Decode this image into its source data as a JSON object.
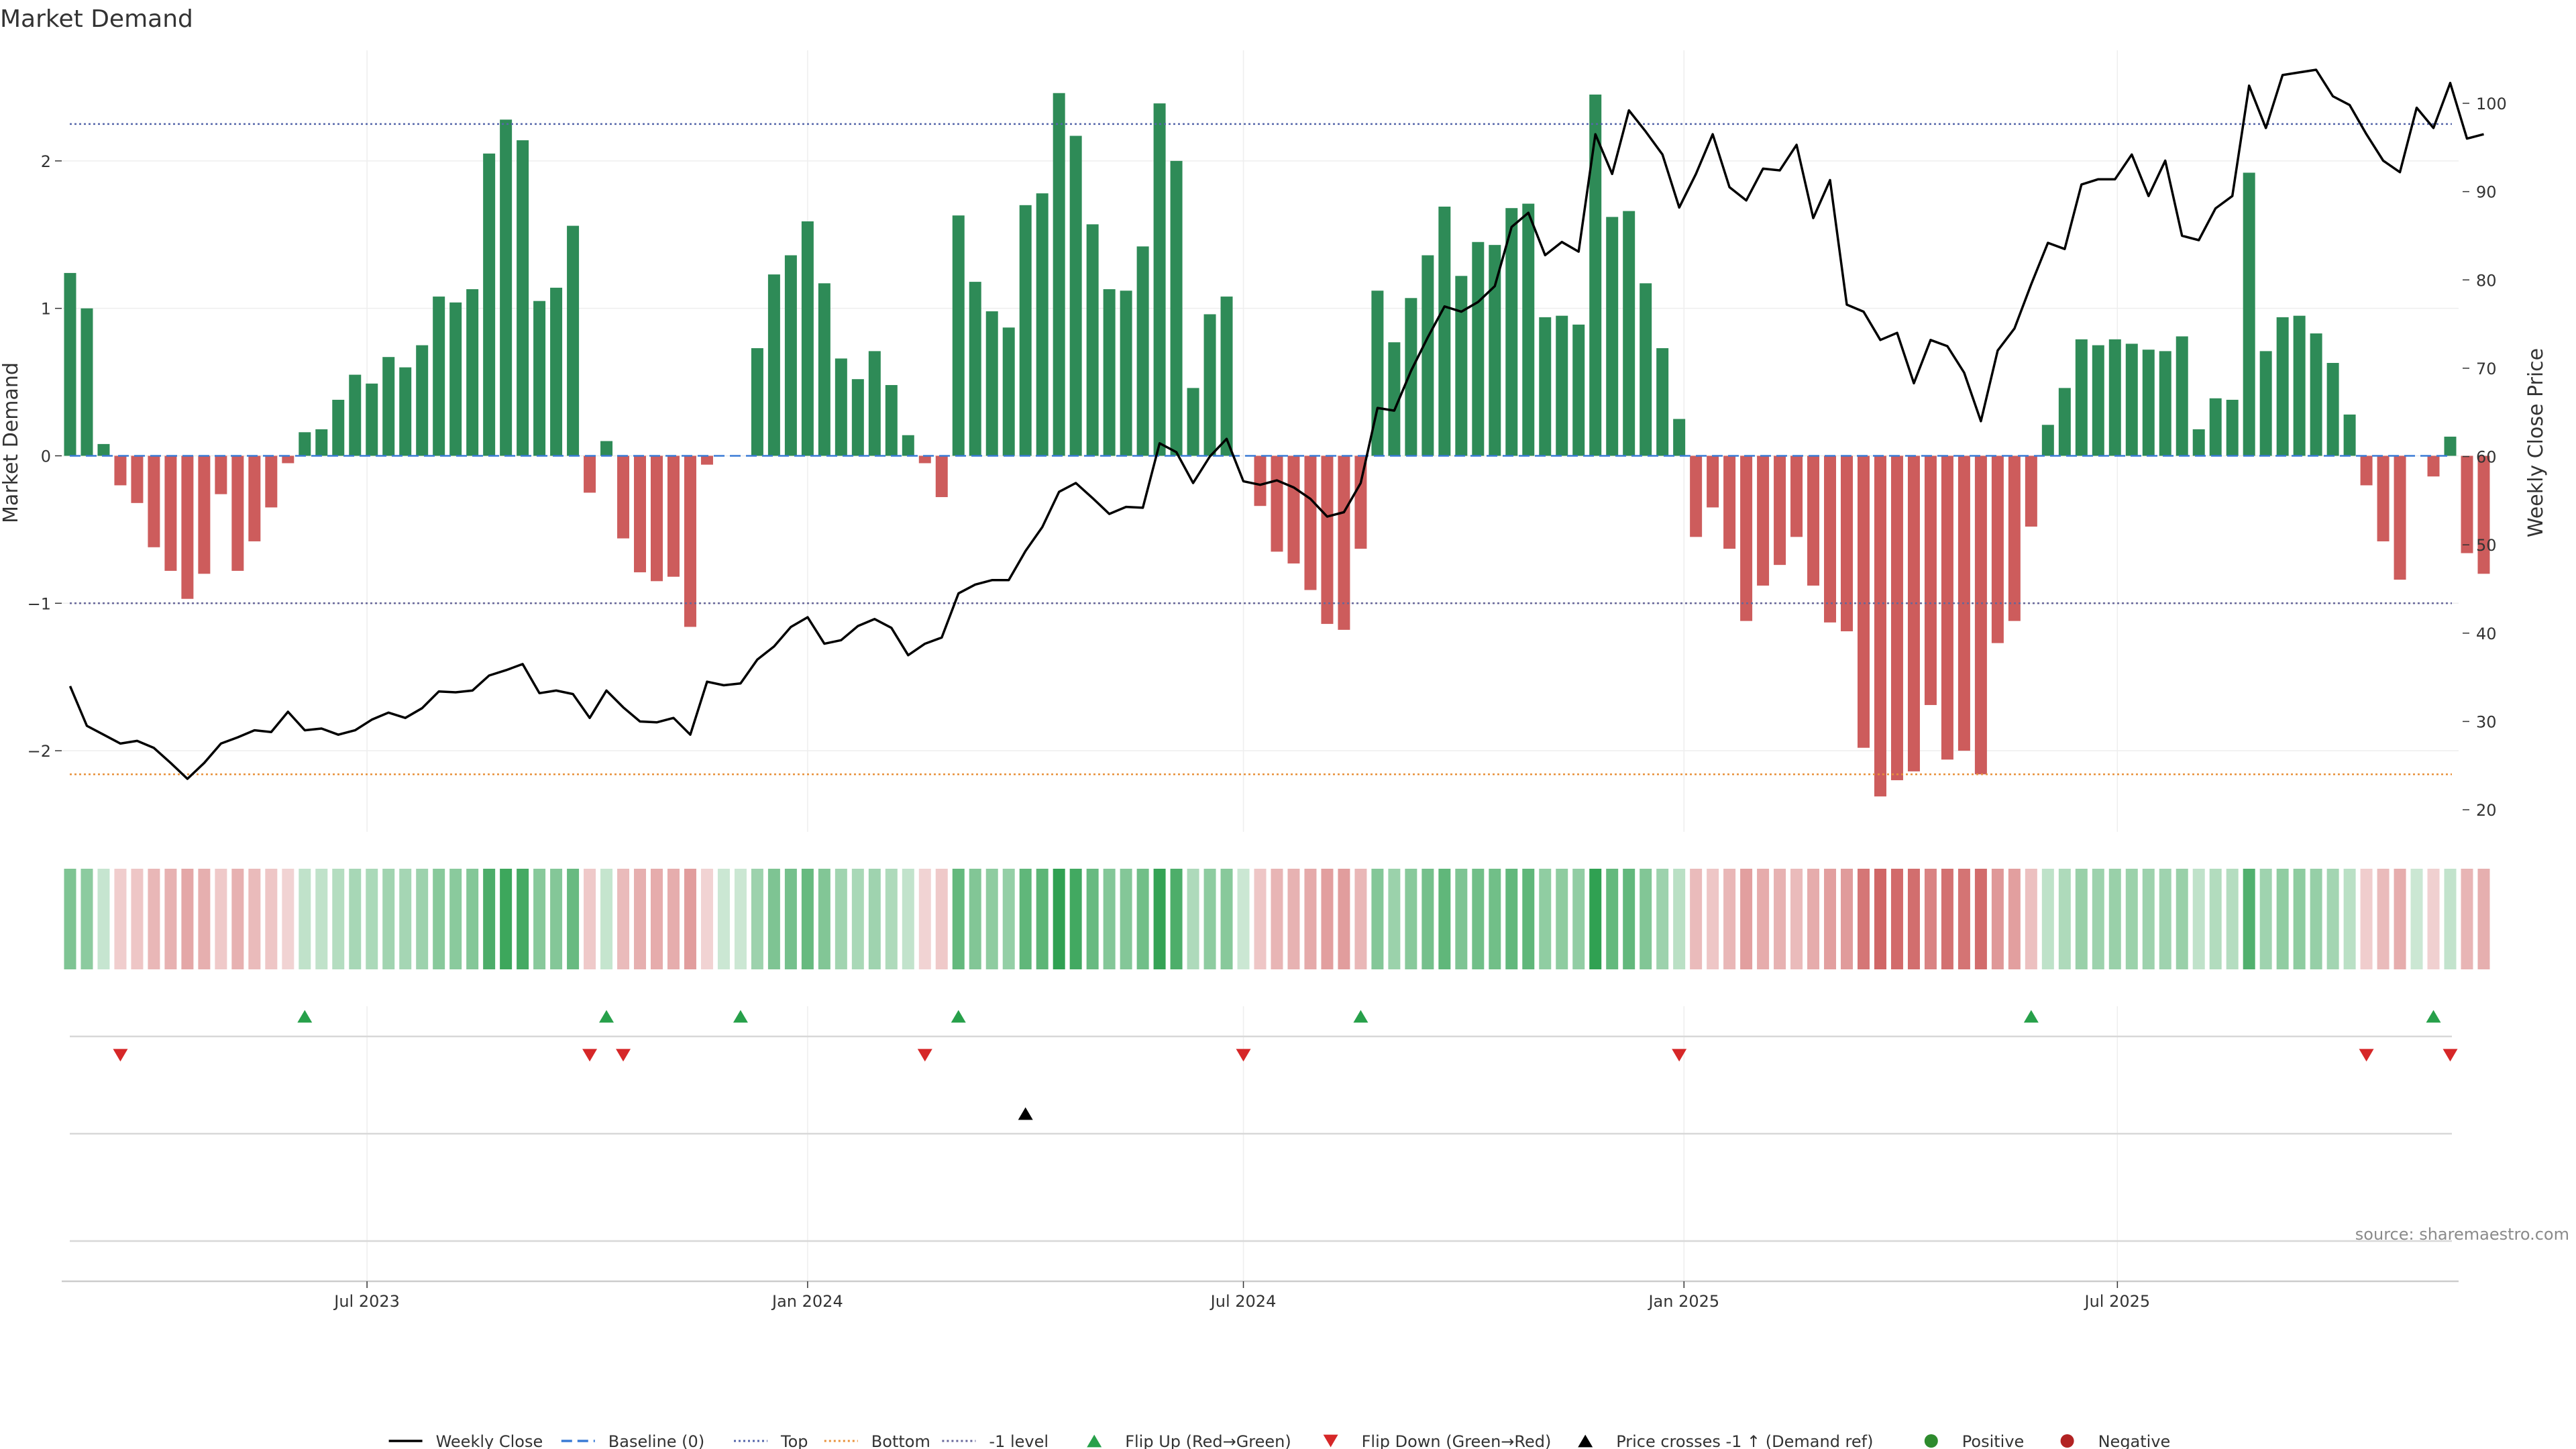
{
  "chart_data": {
    "type": "bar",
    "title": "Market Demand",
    "ylabel": "Market Demand",
    "y2label": "Weekly Close Price",
    "ylim": [
      -2.55,
      2.75
    ],
    "y2lim": [
      17.5,
      106
    ],
    "yticks": [
      -2,
      -1,
      0,
      1,
      2
    ],
    "y2ticks": [
      20,
      30,
      40,
      50,
      60,
      70,
      80,
      90,
      100
    ],
    "x_range": [
      "2023-02-27",
      "2025-11-17"
    ],
    "xticks": [
      {
        "date": "2023-07-01",
        "label": "Jul 2023"
      },
      {
        "date": "2024-01-01",
        "label": "Jan 2024"
      },
      {
        "date": "2024-07-01",
        "label": "Jul 2024"
      },
      {
        "date": "2025-01-01",
        "label": "Jan 2025"
      },
      {
        "date": "2025-07-01",
        "label": "Jul 2025"
      }
    ],
    "levels": {
      "top": 2.25,
      "bottom": -2.16,
      "minus_one": -1.0,
      "baseline": 0
    },
    "series": [
      {
        "name": "Market Demand",
        "start_date": "2023-02-27",
        "interval_days": 7,
        "values": [
          1.24,
          1.0,
          0.08,
          -0.2,
          -0.32,
          -0.62,
          -0.78,
          -0.97,
          -0.8,
          -0.26,
          -0.78,
          -0.58,
          -0.35,
          -0.05,
          0.16,
          0.18,
          0.38,
          0.55,
          0.49,
          0.67,
          0.6,
          0.75,
          1.08,
          1.04,
          1.13,
          2.05,
          2.28,
          2.14,
          1.05,
          1.14,
          1.56,
          -0.25,
          0.1,
          -0.56,
          -0.79,
          -0.85,
          -0.82,
          -1.16,
          -0.06,
          0.0,
          0.0,
          0.73,
          1.23,
          1.36,
          1.59,
          1.17,
          0.66,
          0.52,
          0.71,
          0.48,
          0.14,
          -0.05,
          -0.28,
          1.63,
          1.18,
          0.98,
          0.87,
          1.7,
          1.78,
          2.46,
          2.17,
          1.57,
          1.13,
          1.12,
          1.42,
          2.39,
          2.0,
          0.46,
          0.96,
          1.08,
          0.0,
          -0.34,
          -0.65,
          -0.73,
          -0.91,
          -1.14,
          -1.18,
          -0.63,
          1.12,
          0.77,
          1.07,
          1.36,
          1.69,
          1.22,
          1.45,
          1.43,
          1.68,
          1.71,
          0.94,
          0.95,
          0.89,
          2.45,
          1.62,
          1.66,
          1.17,
          0.73,
          0.25,
          -0.55,
          -0.35,
          -0.63,
          -1.12,
          -0.88,
          -0.74,
          -0.55,
          -0.88,
          -1.13,
          -1.19,
          -1.98,
          -2.31,
          -2.2,
          -2.14,
          -1.69,
          -2.06,
          -2.0,
          -2.16,
          -1.27,
          -1.12,
          -0.48,
          0.21,
          0.46,
          0.79,
          0.75,
          0.79,
          0.76,
          0.72,
          0.71,
          0.81,
          0.18,
          0.39,
          0.38,
          1.92,
          0.71,
          0.94,
          0.95,
          0.83,
          0.63,
          0.28,
          -0.2,
          -0.58,
          -0.84,
          0.0,
          -0.14,
          0.13,
          -0.66,
          -0.8
        ]
      },
      {
        "name": "Weekly Close",
        "start_date": "2023-02-27",
        "interval_days": 7,
        "values": [
          34,
          29.5,
          28.5,
          27.5,
          27.8,
          27,
          25.3,
          23.5,
          25.3,
          27.5,
          28.2,
          29,
          28.8,
          31.1,
          29,
          29.2,
          28.5,
          29,
          30.2,
          31,
          30.4,
          31.5,
          33.4,
          33.3,
          33.5,
          35.2,
          35.8,
          36.5,
          33.2,
          33.5,
          33.1,
          30.4,
          33.5,
          31.6,
          30,
          29.9,
          30.4,
          28.5,
          34.5,
          34.1,
          34.3,
          37,
          38.5,
          40.7,
          41.8,
          38.8,
          39.2,
          40.8,
          41.6,
          40.6,
          37.5,
          38.8,
          39.5,
          44.5,
          45.5,
          46,
          46,
          49.3,
          52,
          56,
          57,
          55.3,
          53.5,
          54.3,
          54.2,
          61.5,
          60.5,
          57,
          60,
          62,
          57.2,
          56.8,
          57.3,
          56.5,
          55.2,
          53.2,
          53.7,
          57,
          65.5,
          65.2,
          69.7,
          73.5,
          77,
          76.4,
          77.5,
          79.3,
          86,
          87.6,
          82.8,
          84.3,
          83.2,
          96.5,
          92,
          99.2,
          96.8,
          94.2,
          88.2,
          92,
          96.5,
          90.5,
          89,
          92.6,
          92.4,
          95.3,
          87,
          91.3,
          77.2,
          76.4,
          73.2,
          74,
          68.3,
          73.2,
          72.5,
          69.5,
          64,
          72,
          74.5,
          79.5,
          84.2,
          83.5,
          90.8,
          91.4,
          91.4,
          94.2,
          89.5,
          93.5,
          85,
          84.5,
          88.1,
          89.5,
          102,
          97.2,
          103.2,
          103.5,
          103.8,
          100.8,
          99.8,
          96.5,
          93.5,
          92.2,
          99.5,
          97.2,
          102.3,
          96,
          96.5
        ]
      }
    ],
    "flip_up_dates": [
      "2023-06-05",
      "2023-10-09",
      "2023-12-04",
      "2024-03-04",
      "2024-08-19",
      "2025-05-26",
      "2025-11-10"
    ],
    "flip_down_dates": [
      "2023-03-20",
      "2023-10-02",
      "2023-10-16",
      "2024-02-19",
      "2024-07-01",
      "2024-12-30",
      "2025-10-13",
      "2025-11-17"
    ],
    "price_cross_dates": [
      "2024-04-01"
    ],
    "strip_colors": {
      "positive": "#3c9a50",
      "negative": "#c0392b"
    },
    "legend": [
      {
        "label": "Weekly Close",
        "kind": "line",
        "color": "#000000"
      },
      {
        "label": "Baseline (0)",
        "kind": "dash",
        "color": "#3a7bd5"
      },
      {
        "label": "Top",
        "kind": "dot",
        "color": "#5566aa"
      },
      {
        "label": "Bottom",
        "kind": "dot",
        "color": "#e8913a"
      },
      {
        "label": "-1 level",
        "kind": "dot",
        "color": "#666699"
      },
      {
        "label": "Flip Up (Red→Green)",
        "kind": "tri-up",
        "color": "#27a04a"
      },
      {
        "label": "Flip Down (Green→Red)",
        "kind": "tri-down",
        "color": "#d62728"
      },
      {
        "label": "Price crosses -1 ↑ (Demand ref)",
        "kind": "tri-up",
        "color": "#000000"
      },
      {
        "label": "Positive",
        "kind": "circle",
        "color": "#2e8b2e"
      },
      {
        "label": "Negative",
        "kind": "circle",
        "color": "#b22222"
      }
    ],
    "colors": {
      "bar_positive": "#2e8b57",
      "bar_negative": "#cd5c5c",
      "line": "#000000"
    }
  },
  "source_note": "source: sharemaestro.com"
}
